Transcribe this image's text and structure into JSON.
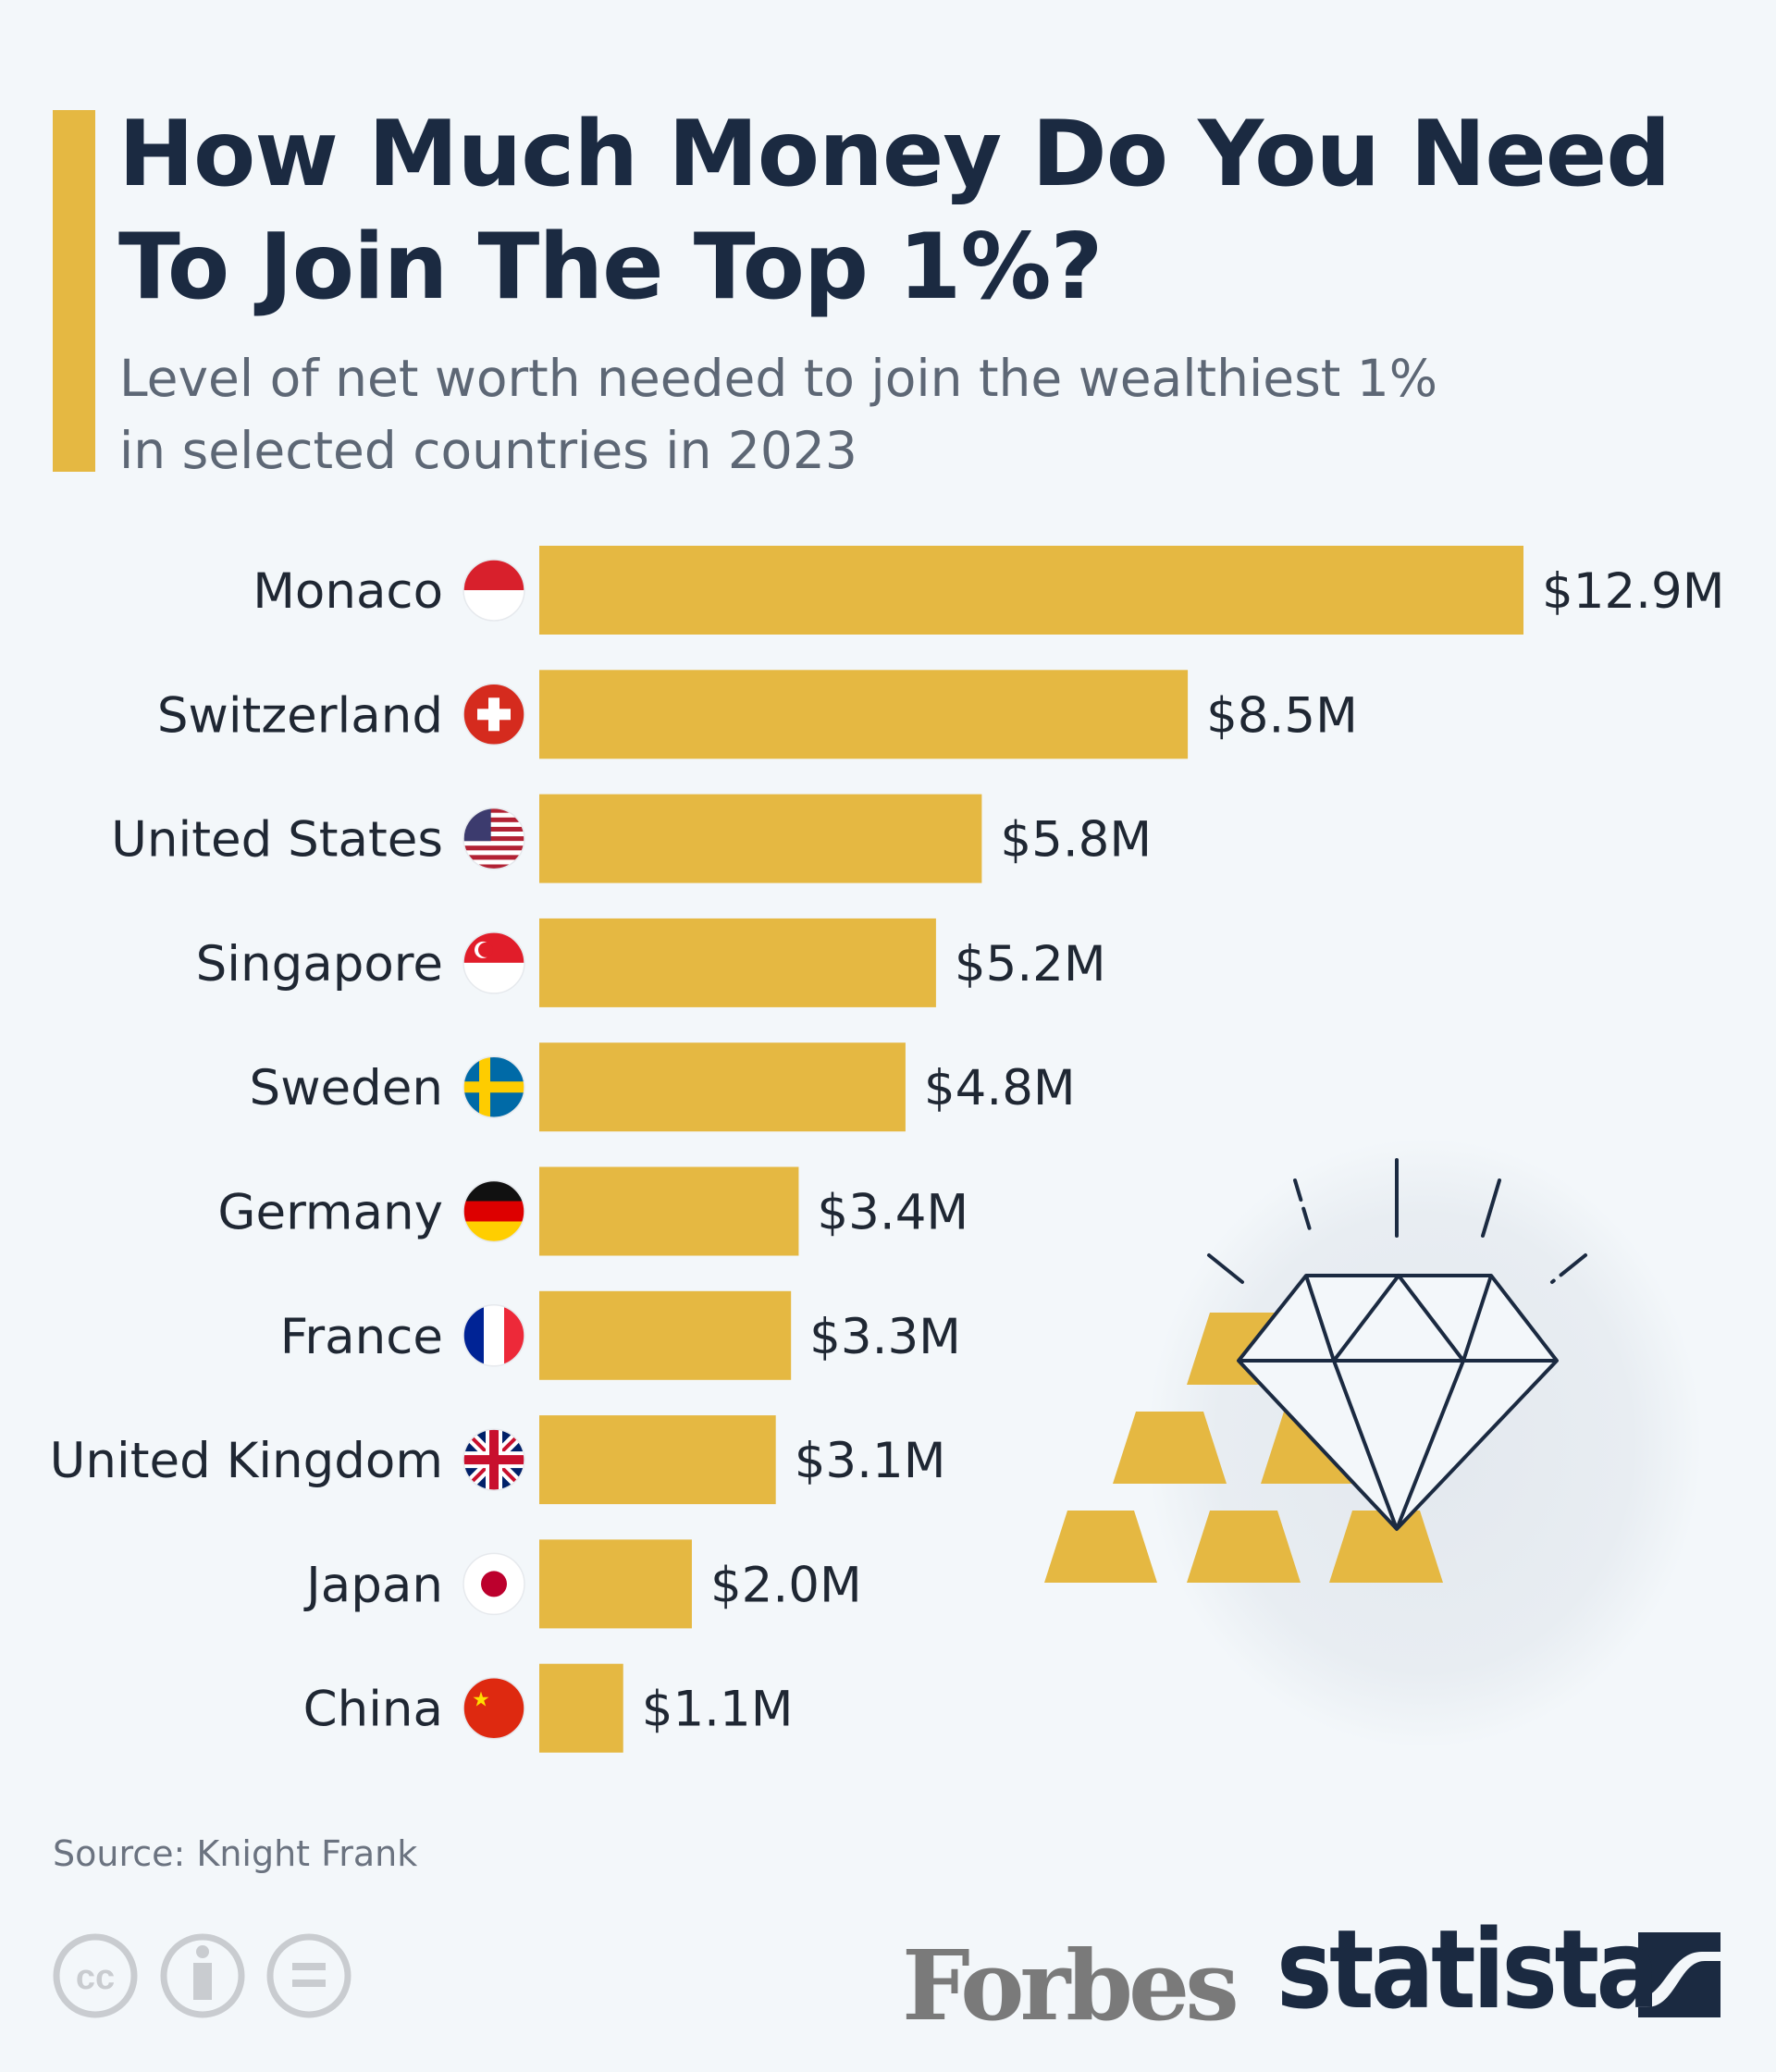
{
  "title_lines": [
    "How Much Money Do You Need",
    "To Join The Top 1%?"
  ],
  "subtitle_lines": [
    "Level of net worth needed to join the wealthiest 1%",
    "in selected countries in 2023"
  ],
  "source": "Source: Knight Frank",
  "logos": {
    "forbes": "Forbes",
    "statista": "statista"
  },
  "license_icons": [
    "cc-icon",
    "attribution-icon",
    "no-derivatives-icon"
  ],
  "colors": {
    "bar": "#e5b842",
    "title": "#1b2a41",
    "background": "#f3f7fa"
  },
  "chart_data": {
    "type": "bar",
    "orientation": "horizontal",
    "title": "How Much Money Do You Need To Join The Top 1%?",
    "subtitle": "Level of net worth needed to join the wealthiest 1% in selected countries in 2023",
    "categories": [
      "Monaco",
      "Switzerland",
      "United States",
      "Singapore",
      "Sweden",
      "Germany",
      "France",
      "United Kingdom",
      "Japan",
      "China"
    ],
    "values": [
      12.9,
      8.5,
      5.8,
      5.2,
      4.8,
      3.4,
      3.3,
      3.1,
      2.0,
      1.1
    ],
    "data_labels": [
      "$12.9M",
      "$8.5M",
      "$5.8M",
      "$5.2M",
      "$4.8M",
      "$3.4M",
      "$3.3M",
      "$3.1M",
      "$2.0M",
      "$1.1M"
    ],
    "unit": "million U.S. dollars",
    "flags": [
      "monaco",
      "switzerland",
      "united-states",
      "singapore",
      "sweden",
      "germany",
      "france",
      "united-kingdom",
      "japan",
      "china"
    ],
    "grid": false,
    "legend": "none",
    "source": "Knight Frank"
  }
}
